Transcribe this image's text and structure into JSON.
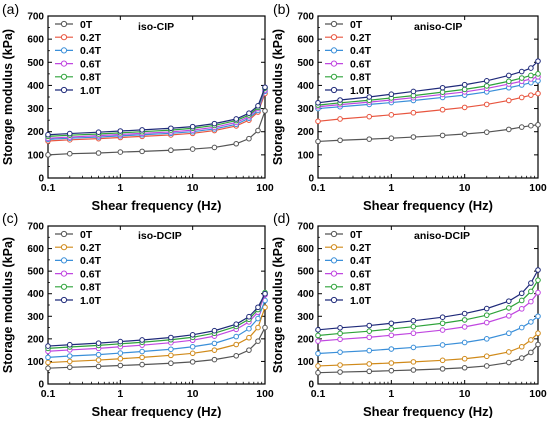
{
  "chart_data": [
    {
      "type": "line",
      "panel_label": "(a)",
      "title": "iso-CIP",
      "xlabel": "Shear frequency (Hz)",
      "ylabel": "Storage modulus (kPa)",
      "xscale": "log",
      "xlim": [
        0.1,
        100
      ],
      "ylim": [
        0,
        700
      ],
      "xticks": [
        "0.1",
        "1",
        "10",
        "100"
      ],
      "yticks": [
        "0",
        "100",
        "200",
        "300",
        "400",
        "500",
        "600",
        "700"
      ],
      "legend_position": "top-left",
      "x": [
        0.1,
        0.2,
        0.5,
        1,
        2,
        5,
        10,
        20,
        40,
        60,
        80,
        100
      ],
      "series": [
        {
          "name": "0T",
          "color": "#555555",
          "values": [
            100,
            105,
            108,
            112,
            115,
            120,
            125,
            132,
            148,
            170,
            205,
            290
          ]
        },
        {
          "name": "0.2T",
          "color": "#e8553f",
          "values": [
            160,
            165,
            170,
            175,
            180,
            186,
            193,
            205,
            225,
            250,
            285,
            365
          ]
        },
        {
          "name": "0.4T",
          "color": "#3a8fd9",
          "values": [
            167,
            172,
            177,
            182,
            187,
            193,
            200,
            212,
            232,
            258,
            292,
            375
          ]
        },
        {
          "name": "0.6T",
          "color": "#c047e0",
          "values": [
            172,
            177,
            183,
            188,
            193,
            199,
            207,
            219,
            240,
            265,
            300,
            380
          ]
        },
        {
          "name": "0.8T",
          "color": "#2ea33a",
          "values": [
            180,
            185,
            190,
            195,
            200,
            207,
            215,
            227,
            248,
            272,
            305,
            388
          ]
        },
        {
          "name": "1.0T",
          "color": "#1f2a7a",
          "values": [
            187,
            192,
            198,
            203,
            208,
            215,
            222,
            235,
            255,
            280,
            312,
            392
          ]
        }
      ]
    },
    {
      "type": "line",
      "panel_label": "(b)",
      "title": "aniso-CIP",
      "xlabel": "Shear frequency (Hz)",
      "ylabel": "Storage modulus (kPa)",
      "xscale": "log",
      "xlim": [
        0.1,
        100
      ],
      "ylim": [
        0,
        700
      ],
      "xticks": [
        "0.1",
        "1",
        "10",
        "100"
      ],
      "yticks": [
        "0",
        "100",
        "200",
        "300",
        "400",
        "500",
        "600",
        "700"
      ],
      "legend_position": "top-left",
      "x": [
        0.1,
        0.2,
        0.5,
        1,
        2,
        5,
        10,
        20,
        40,
        60,
        80,
        100
      ],
      "series": [
        {
          "name": "0T",
          "color": "#555555",
          "values": [
            158,
            163,
            168,
            172,
            177,
            184,
            190,
            198,
            210,
            220,
            226,
            230
          ]
        },
        {
          "name": "0.2T",
          "color": "#e8553f",
          "values": [
            245,
            255,
            265,
            273,
            282,
            295,
            305,
            318,
            335,
            348,
            358,
            365
          ]
        },
        {
          "name": "0.4T",
          "color": "#3a8fd9",
          "values": [
            300,
            308,
            318,
            326,
            335,
            348,
            358,
            372,
            390,
            402,
            412,
            420
          ]
        },
        {
          "name": "0.6T",
          "color": "#c047e0",
          "values": [
            308,
            317,
            328,
            337,
            347,
            361,
            372,
            387,
            406,
            418,
            428,
            437
          ]
        },
        {
          "name": "0.8T",
          "color": "#2ea33a",
          "values": [
            315,
            325,
            336,
            346,
            356,
            371,
            383,
            398,
            418,
            432,
            443,
            450
          ]
        },
        {
          "name": "1.0T",
          "color": "#1f2a7a",
          "values": [
            325,
            337,
            350,
            362,
            374,
            390,
            403,
            420,
            443,
            460,
            475,
            505
          ]
        }
      ]
    },
    {
      "type": "line",
      "panel_label": "(c)",
      "title": "iso-DCIP",
      "xlabel": "Shear frequency (Hz)",
      "ylabel": "Storage modulus (kPa)",
      "xscale": "log",
      "xlim": [
        0.1,
        100
      ],
      "ylim": [
        0,
        700
      ],
      "xticks": [
        "0.1",
        "1",
        "10",
        "100"
      ],
      "yticks": [
        "0",
        "100",
        "200",
        "300",
        "400",
        "500",
        "600",
        "700"
      ],
      "legend_position": "top-left",
      "x": [
        0.1,
        0.2,
        0.5,
        1,
        2,
        5,
        10,
        20,
        40,
        60,
        80,
        100
      ],
      "series": [
        {
          "name": "0T",
          "color": "#555555",
          "values": [
            70,
            74,
            78,
            82,
            86,
            92,
            98,
            108,
            125,
            150,
            190,
            250
          ]
        },
        {
          "name": "0.2T",
          "color": "#d08a1a",
          "values": [
            95,
            100,
            106,
            112,
            118,
            127,
            136,
            150,
            175,
            205,
            250,
            340
          ]
        },
        {
          "name": "0.4T",
          "color": "#3a8fd9",
          "values": [
            118,
            124,
            130,
            137,
            144,
            154,
            165,
            180,
            210,
            245,
            290,
            370
          ]
        },
        {
          "name": "0.6T",
          "color": "#c047e0",
          "values": [
            145,
            151,
            158,
            165,
            172,
            183,
            194,
            212,
            242,
            275,
            318,
            395
          ]
        },
        {
          "name": "0.8T",
          "color": "#2ea33a",
          "values": [
            158,
            164,
            171,
            178,
            185,
            196,
            207,
            225,
            255,
            287,
            330,
            405
          ]
        },
        {
          "name": "1.0T",
          "color": "#1f2a7a",
          "values": [
            168,
            174,
            181,
            188,
            195,
            206,
            218,
            236,
            265,
            298,
            340,
            400
          ]
        }
      ]
    },
    {
      "type": "line",
      "panel_label": "(d)",
      "title": "aniso-DCIP",
      "xlabel": "Shear frequency (Hz)",
      "ylabel": "Storage modulus (kPa)",
      "xscale": "log",
      "xlim": [
        0.1,
        100
      ],
      "ylim": [
        0,
        700
      ],
      "xticks": [
        "0.1",
        "1",
        "10",
        "100"
      ],
      "yticks": [
        "0",
        "100",
        "200",
        "300",
        "400",
        "500",
        "600",
        "700"
      ],
      "legend_position": "top-left",
      "x": [
        0.1,
        0.2,
        0.5,
        1,
        2,
        5,
        10,
        20,
        40,
        60,
        80,
        100
      ],
      "series": [
        {
          "name": "0T",
          "color": "#555555",
          "values": [
            50,
            53,
            56,
            59,
            62,
            67,
            72,
            80,
            95,
            115,
            140,
            175
          ]
        },
        {
          "name": "0.2T",
          "color": "#d08a1a",
          "values": [
            80,
            84,
            89,
            93,
            98,
            105,
            112,
            123,
            142,
            165,
            195,
            225
          ]
        },
        {
          "name": "0.4T",
          "color": "#3a8fd9",
          "values": [
            135,
            141,
            148,
            155,
            162,
            173,
            184,
            200,
            225,
            250,
            275,
            300
          ]
        },
        {
          "name": "0.6T",
          "color": "#c047e0",
          "values": [
            190,
            198,
            207,
            216,
            225,
            239,
            253,
            272,
            302,
            333,
            365,
            405
          ]
        },
        {
          "name": "0.8T",
          "color": "#2ea33a",
          "values": [
            215,
            224,
            234,
            244,
            254,
            269,
            284,
            305,
            337,
            370,
            410,
            460
          ]
        },
        {
          "name": "1.0T",
          "color": "#1f2a7a",
          "values": [
            240,
            249,
            259,
            269,
            280,
            296,
            312,
            334,
            367,
            402,
            447,
            505
          ]
        }
      ]
    }
  ]
}
